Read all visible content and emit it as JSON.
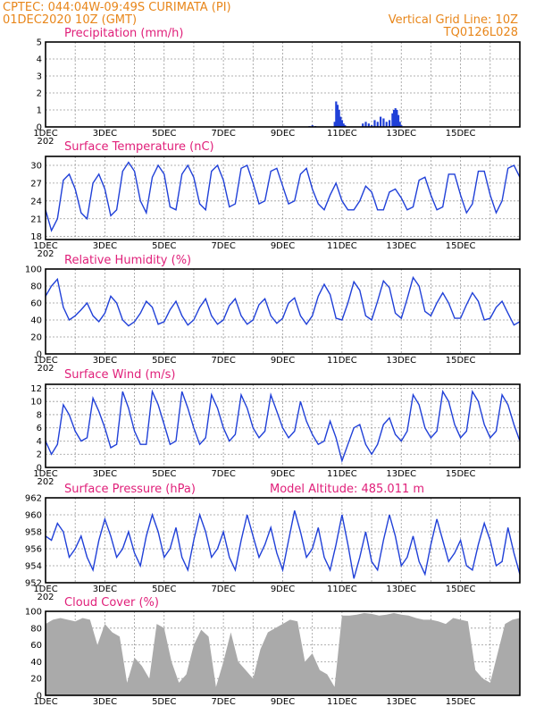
{
  "header": {
    "line1_left": "CPTEC:   044:04W-09:49S   CURIMATA (PI)",
    "line2_left": "01DEC2020 10Z (GMT)",
    "line2_right": "Vertical Grid Line: 10Z",
    "line3_right": "TQ0126L028"
  },
  "x_axis": {
    "tick_labels": [
      "1DEC",
      "3DEC",
      "5DEC",
      "7DEC",
      "9DEC",
      "11DEC",
      "13DEC",
      "15DEC"
    ],
    "year_stub": "202"
  },
  "colors": {
    "line": "#2040d8",
    "bars": "#2040d8",
    "cloud": "#aaaaaa",
    "title": "#e0207a",
    "header": "#e8861a"
  },
  "chart_data": [
    {
      "type": "bar",
      "title": "Precipitation (mm/h)",
      "xlabel": "",
      "ylabel": "",
      "ylim": [
        0,
        5
      ],
      "yticks": [
        0,
        1,
        2,
        3,
        4,
        5
      ],
      "x_unit": "day index (0 = 1DEC 00Z)",
      "x": [
        8.9,
        9.0,
        9.1,
        9.75,
        9.8,
        9.85,
        9.9,
        9.95,
        10.0,
        10.05,
        10.1,
        10.7,
        10.8,
        10.9,
        11.0,
        11.1,
        11.2,
        11.3,
        11.4,
        11.5,
        11.6,
        11.7,
        11.75,
        11.8,
        11.85,
        11.9,
        11.95,
        12.0
      ],
      "values": [
        0.05,
        0.1,
        0.05,
        0.3,
        1.5,
        1.3,
        1.0,
        0.6,
        0.4,
        0.2,
        0.1,
        0.2,
        0.3,
        0.2,
        0.1,
        0.4,
        0.3,
        0.6,
        0.5,
        0.3,
        0.4,
        0.8,
        1.0,
        1.1,
        1.0,
        0.7,
        0.3,
        0.1
      ]
    },
    {
      "type": "line",
      "title": "Surface Temperature (nC)",
      "xlabel": "",
      "ylabel": "",
      "ylim": [
        17.5,
        31.5
      ],
      "yticks": [
        18,
        21,
        24,
        27,
        30
      ],
      "x": [
        0.0,
        0.2,
        0.4,
        0.6,
        0.8,
        1.0,
        1.2,
        1.4,
        1.6,
        1.8,
        2.0,
        2.2,
        2.4,
        2.6,
        2.8,
        3.0,
        3.2,
        3.4,
        3.6,
        3.8,
        4.0,
        4.2,
        4.4,
        4.6,
        4.8,
        5.0,
        5.2,
        5.4,
        5.6,
        5.8,
        6.0,
        6.2,
        6.4,
        6.6,
        6.8,
        7.0,
        7.2,
        7.4,
        7.6,
        7.8,
        8.0,
        8.2,
        8.4,
        8.6,
        8.8,
        9.0,
        9.2,
        9.4,
        9.6,
        9.8,
        10.0,
        10.2,
        10.4,
        10.6,
        10.8,
        11.0,
        11.2,
        11.4,
        11.6,
        11.8,
        12.0,
        12.2,
        12.4,
        12.6,
        12.8,
        13.0,
        13.2,
        13.4,
        13.6,
        13.8,
        14.0,
        14.2,
        14.4,
        14.6,
        14.8,
        15.0,
        15.2,
        15.4,
        15.6,
        15.8,
        16.0
      ],
      "values": [
        22.5,
        19.0,
        21.0,
        27.5,
        28.5,
        26.0,
        22.0,
        21.0,
        27.0,
        28.5,
        26.0,
        21.5,
        22.5,
        29.0,
        30.5,
        29.0,
        24.0,
        22.0,
        28.0,
        30.0,
        28.5,
        23.0,
        22.5,
        28.5,
        30.0,
        28.0,
        23.5,
        22.5,
        29.0,
        30.0,
        27.5,
        23.0,
        23.5,
        29.5,
        30.0,
        27.0,
        23.5,
        24.0,
        29.0,
        29.5,
        26.5,
        23.5,
        24.0,
        28.5,
        29.5,
        26.0,
        23.5,
        22.5,
        25.0,
        27.0,
        24.0,
        22.5,
        22.5,
        24.0,
        26.5,
        25.5,
        22.5,
        22.5,
        25.5,
        26.0,
        24.5,
        22.5,
        23.0,
        27.5,
        28.0,
        25.0,
        22.5,
        23.0,
        28.5,
        28.5,
        25.0,
        22.0,
        23.5,
        29.0,
        29.0,
        25.0,
        22.0,
        24.0,
        29.5,
        30.0,
        28.0
      ]
    },
    {
      "type": "line",
      "title": "Relative Humidity (%)",
      "xlabel": "",
      "ylabel": "",
      "ylim": [
        0,
        100
      ],
      "yticks": [
        0,
        20,
        40,
        60,
        80,
        100
      ],
      "x": [
        0.0,
        0.2,
        0.4,
        0.6,
        0.8,
        1.0,
        1.2,
        1.4,
        1.6,
        1.8,
        2.0,
        2.2,
        2.4,
        2.6,
        2.8,
        3.0,
        3.2,
        3.4,
        3.6,
        3.8,
        4.0,
        4.2,
        4.4,
        4.6,
        4.8,
        5.0,
        5.2,
        5.4,
        5.6,
        5.8,
        6.0,
        6.2,
        6.4,
        6.6,
        6.8,
        7.0,
        7.2,
        7.4,
        7.6,
        7.8,
        8.0,
        8.2,
        8.4,
        8.6,
        8.8,
        9.0,
        9.2,
        9.4,
        9.6,
        9.8,
        10.0,
        10.2,
        10.4,
        10.6,
        10.8,
        11.0,
        11.2,
        11.4,
        11.6,
        11.8,
        12.0,
        12.2,
        12.4,
        12.6,
        12.8,
        13.0,
        13.2,
        13.4,
        13.6,
        13.8,
        14.0,
        14.2,
        14.4,
        14.6,
        14.8,
        15.0,
        15.2,
        15.4,
        15.6,
        15.8,
        16.0
      ],
      "values": [
        68,
        80,
        88,
        55,
        40,
        45,
        52,
        60,
        45,
        38,
        48,
        68,
        60,
        40,
        33,
        38,
        48,
        62,
        55,
        35,
        38,
        52,
        62,
        45,
        34,
        40,
        55,
        65,
        45,
        35,
        40,
        57,
        65,
        45,
        35,
        40,
        58,
        65,
        45,
        36,
        42,
        60,
        66,
        45,
        35,
        45,
        68,
        82,
        70,
        42,
        40,
        60,
        85,
        75,
        45,
        40,
        62,
        86,
        78,
        48,
        42,
        65,
        90,
        80,
        50,
        45,
        60,
        72,
        60,
        42,
        42,
        58,
        72,
        62,
        40,
        42,
        55,
        62,
        48,
        34,
        38
      ]
    },
    {
      "type": "line",
      "title": "Surface Wind (m/s)",
      "xlabel": "",
      "ylabel": "",
      "ylim": [
        0,
        12.6
      ],
      "yticks": [
        0,
        2,
        4,
        6,
        8,
        10,
        12
      ],
      "x": [
        0.0,
        0.2,
        0.4,
        0.6,
        0.8,
        1.0,
        1.2,
        1.4,
        1.6,
        1.8,
        2.0,
        2.2,
        2.4,
        2.6,
        2.8,
        3.0,
        3.2,
        3.4,
        3.6,
        3.8,
        4.0,
        4.2,
        4.4,
        4.6,
        4.8,
        5.0,
        5.2,
        5.4,
        5.6,
        5.8,
        6.0,
        6.2,
        6.4,
        6.6,
        6.8,
        7.0,
        7.2,
        7.4,
        7.6,
        7.8,
        8.0,
        8.2,
        8.4,
        8.6,
        8.8,
        9.0,
        9.2,
        9.4,
        9.6,
        9.8,
        10.0,
        10.2,
        10.4,
        10.6,
        10.8,
        11.0,
        11.2,
        11.4,
        11.6,
        11.8,
        12.0,
        12.2,
        12.4,
        12.6,
        12.8,
        13.0,
        13.2,
        13.4,
        13.6,
        13.8,
        14.0,
        14.2,
        14.4,
        14.6,
        14.8,
        15.0,
        15.2,
        15.4,
        15.6,
        15.8,
        16.0
      ],
      "values": [
        4.0,
        2.0,
        3.5,
        9.5,
        8.0,
        5.5,
        4.0,
        4.5,
        10.5,
        8.5,
        6.0,
        3.0,
        3.5,
        11.5,
        9.0,
        5.5,
        3.5,
        3.5,
        11.5,
        9.5,
        6.5,
        3.5,
        4.0,
        11.5,
        9.0,
        6.0,
        3.5,
        4.5,
        11.0,
        9.0,
        6.0,
        4.0,
        5.0,
        11.0,
        9.0,
        6.0,
        4.5,
        5.5,
        11.0,
        8.5,
        6.0,
        4.5,
        5.5,
        10.0,
        7.0,
        5.0,
        3.5,
        4.0,
        7.0,
        4.5,
        1.0,
        3.5,
        6.0,
        6.5,
        3.5,
        2.0,
        3.5,
        6.5,
        7.5,
        5.0,
        4.0,
        5.5,
        11.0,
        9.5,
        6.0,
        4.5,
        5.5,
        11.5,
        10.0,
        6.5,
        4.5,
        5.5,
        11.5,
        10.0,
        6.5,
        4.5,
        5.5,
        11.0,
        9.5,
        6.5,
        4.0
      ]
    },
    {
      "type": "line",
      "title": "Surface Pressure (hPa)",
      "annotation": "Model Altitude: 485.011 m",
      "xlabel": "",
      "ylabel": "",
      "ylim": [
        952,
        962
      ],
      "yticks": [
        952,
        954,
        956,
        958,
        960,
        962
      ],
      "x": [
        0.0,
        0.2,
        0.4,
        0.6,
        0.8,
        1.0,
        1.2,
        1.4,
        1.6,
        1.8,
        2.0,
        2.2,
        2.4,
        2.6,
        2.8,
        3.0,
        3.2,
        3.4,
        3.6,
        3.8,
        4.0,
        4.2,
        4.4,
        4.6,
        4.8,
        5.0,
        5.2,
        5.4,
        5.6,
        5.8,
        6.0,
        6.2,
        6.4,
        6.6,
        6.8,
        7.0,
        7.2,
        7.4,
        7.6,
        7.8,
        8.0,
        8.2,
        8.4,
        8.6,
        8.8,
        9.0,
        9.2,
        9.4,
        9.6,
        9.8,
        10.0,
        10.2,
        10.4,
        10.6,
        10.8,
        11.0,
        11.2,
        11.4,
        11.6,
        11.8,
        12.0,
        12.2,
        12.4,
        12.6,
        12.8,
        13.0,
        13.2,
        13.4,
        13.6,
        13.8,
        14.0,
        14.2,
        14.4,
        14.6,
        14.8,
        15.0,
        15.2,
        15.4,
        15.6,
        15.8,
        16.0
      ],
      "values": [
        957.5,
        957.0,
        959.0,
        958.0,
        955.0,
        956.0,
        957.5,
        955.0,
        953.5,
        957.0,
        959.5,
        957.5,
        955.0,
        956.0,
        958.0,
        955.5,
        954.0,
        957.5,
        960.0,
        958.0,
        955.0,
        956.0,
        958.5,
        955.0,
        953.5,
        957.0,
        960.0,
        958.0,
        955.0,
        956.0,
        958.0,
        955.0,
        953.5,
        957.0,
        960.0,
        957.5,
        955.0,
        956.5,
        958.5,
        955.5,
        953.5,
        957.0,
        960.5,
        958.0,
        955.0,
        956.0,
        958.5,
        955.0,
        953.5,
        956.5,
        960.0,
        956.5,
        952.5,
        955.0,
        958.0,
        954.5,
        953.5,
        957.0,
        960.0,
        957.5,
        954.0,
        955.0,
        957.5,
        954.5,
        953.0,
        956.5,
        959.5,
        957.0,
        954.5,
        955.5,
        957.0,
        954.0,
        953.5,
        956.5,
        959.0,
        957.0,
        954.0,
        954.5,
        958.5,
        955.5,
        953.0
      ]
    },
    {
      "type": "area",
      "title": "Cloud Cover (%)",
      "xlabel": "",
      "ylabel": "",
      "ylim": [
        0,
        100
      ],
      "yticks": [
        0,
        20,
        40,
        60,
        80,
        100
      ],
      "x": [
        0.0,
        0.25,
        0.5,
        0.75,
        1.0,
        1.25,
        1.5,
        1.75,
        2.0,
        2.25,
        2.5,
        2.75,
        3.0,
        3.25,
        3.5,
        3.75,
        4.0,
        4.25,
        4.5,
        4.75,
        5.0,
        5.25,
        5.5,
        5.75,
        6.0,
        6.25,
        6.5,
        6.75,
        7.0,
        7.25,
        7.5,
        7.75,
        8.0,
        8.25,
        8.5,
        8.75,
        9.0,
        9.25,
        9.5,
        9.75,
        10.0,
        10.25,
        10.5,
        10.75,
        11.0,
        11.25,
        11.5,
        11.75,
        12.0,
        12.25,
        12.5,
        12.75,
        13.0,
        13.25,
        13.5,
        13.75,
        14.0,
        14.25,
        14.5,
        14.75,
        15.0,
        15.25,
        15.5,
        15.75,
        16.0
      ],
      "values": [
        85,
        90,
        92,
        90,
        88,
        92,
        90,
        60,
        85,
        75,
        70,
        15,
        45,
        35,
        20,
        85,
        80,
        40,
        15,
        25,
        60,
        78,
        70,
        10,
        40,
        75,
        40,
        30,
        20,
        55,
        75,
        80,
        85,
        90,
        88,
        40,
        50,
        30,
        25,
        10,
        95,
        95,
        96,
        98,
        97,
        95,
        96,
        98,
        96,
        95,
        92,
        90,
        90,
        88,
        85,
        92,
        90,
        88,
        30,
        20,
        15,
        50,
        85,
        90,
        92
      ]
    }
  ]
}
